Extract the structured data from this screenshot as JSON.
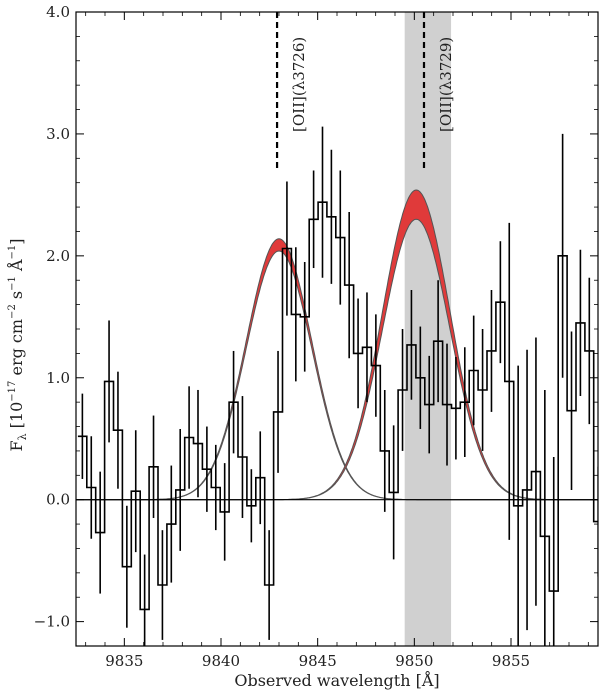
{
  "chart_data": {
    "type": "line",
    "title": "",
    "xlabel": "Observed wavelength [Å]",
    "ylabel": "F_λ [10^-17 erg cm^-2 s^-1 Å^-1]",
    "ylabel_parts": {
      "F": "F",
      "lambda": "λ",
      "open": " [10",
      "exp1": "−17",
      "unit1": " erg cm",
      "exp2": "−2",
      "unit2": " s",
      "exp3": "−1",
      "unit3": " Å",
      "exp4": "−1",
      "close": "]"
    },
    "xlim": [
      9832.5,
      9859.5
    ],
    "ylim": [
      -1.2,
      4.0
    ],
    "x_ticks": [
      9835,
      9840,
      9845,
      9850,
      9855
    ],
    "y_ticks": [
      -1.0,
      0.0,
      1.0,
      2.0,
      3.0,
      4.0
    ],
    "x_tick_labels": [
      "9835",
      "9840",
      "9845",
      "9850",
      "9855"
    ],
    "y_tick_labels": [
      "−1.0",
      "0.0",
      "1.0",
      "2.0",
      "3.0",
      "4.0"
    ],
    "grid": false,
    "colors": {
      "model_fill": "#e03a3a",
      "model_edge": "#555555",
      "data": "#000000",
      "shade": "#c8c8c8",
      "zero_line": "#000000"
    },
    "shaded_region": {
      "x": [
        9849.5,
        9851.9
      ]
    },
    "lines": [
      {
        "label": "[OII](λ3726)",
        "x": 9842.9
      },
      {
        "label": "[OII](λ3729)",
        "x": 9850.5
      }
    ],
    "models": [
      {
        "center": 9843.0,
        "sigma": 1.7,
        "amp_low": 2.04,
        "amp_high": 2.14
      },
      {
        "center": 9850.1,
        "sigma": 1.75,
        "amp_low": 2.3,
        "amp_high": 2.54
      }
    ],
    "spectrum": {
      "bin_width": 0.46,
      "x_start": 9832.6,
      "y": [
        0.52,
        0.1,
        -0.27,
        0.97,
        0.57,
        -0.55,
        0.07,
        -0.9,
        0.27,
        -0.7,
        -0.2,
        0.08,
        0.51,
        0.46,
        0.25,
        0.1,
        -0.1,
        0.8,
        0.35,
        -0.05,
        0.18,
        -0.7,
        0.72,
        2.06,
        1.52,
        1.5,
        2.3,
        2.44,
        2.32,
        2.15,
        1.76,
        1.2,
        1.25,
        1.1,
        0.4,
        0.06,
        0.9,
        1.27,
        1.0,
        0.78,
        1.3,
        0.78,
        0.75,
        0.8,
        1.06,
        0.9,
        1.22,
        1.62,
        0.97,
        -0.05,
        0.08,
        0.23,
        -0.3,
        -0.75,
        2.0,
        0.73,
        1.45,
        1.22,
        -0.18,
        -0.2,
        -0.4,
        0.9,
        0.0,
        -0.1,
        0.8,
        -0.36,
        0.1,
        -0.35,
        0.38,
        -0.85,
        -0.02,
        0.36,
        -0.05
      ],
      "err": [
        0.35,
        0.42,
        0.5,
        0.5,
        0.48,
        0.5,
        0.5,
        0.45,
        0.42,
        0.45,
        0.48,
        0.5,
        0.42,
        0.44,
        0.35,
        0.35,
        0.4,
        0.42,
        0.5,
        0.3,
        0.38,
        0.45,
        0.5,
        0.55,
        0.55,
        0.45,
        0.4,
        0.62,
        0.55,
        0.55,
        0.6,
        0.45,
        0.45,
        0.42,
        0.5,
        0.55,
        0.5,
        0.45,
        0.42,
        0.4,
        0.5,
        0.5,
        0.42,
        0.45,
        0.45,
        0.5,
        0.5,
        0.5,
        1.3,
        1.15,
        1.15,
        1.1,
        1.2,
        1.1,
        1.0,
        0.65,
        0.6,
        0.6,
        0.45,
        0.5,
        0.5,
        0.5,
        0.45,
        0.5,
        0.42,
        0.5,
        0.5,
        0.45,
        0.45,
        0.45,
        0.35,
        0.42,
        0.4
      ]
    }
  }
}
